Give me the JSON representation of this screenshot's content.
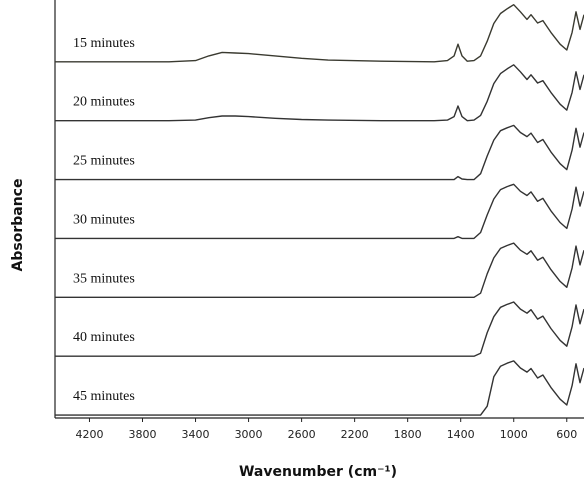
{
  "chart_data": {
    "type": "line",
    "x_label": "Wavenumber (cm⁻¹)",
    "y_label": "Absorbance",
    "x": [
      4460,
      4000,
      3600,
      3400,
      3300,
      3200,
      3100,
      3000,
      2800,
      2600,
      2400,
      2000,
      1600,
      1500,
      1450,
      1420,
      1390,
      1350,
      1300,
      1250,
      1200,
      1150,
      1100,
      1050,
      1000,
      950,
      900,
      870,
      820,
      780,
      720,
      650,
      600,
      560,
      530,
      500,
      470
    ],
    "xlim": [
      4460,
      470
    ],
    "xticks": [
      4200,
      3800,
      3400,
      3000,
      2600,
      2200,
      1800,
      1400,
      1000,
      600
    ],
    "ylim": [
      0,
      7.1
    ],
    "series": [
      {
        "name": "15 minutes",
        "color": "#3a3a30",
        "values": [
          6.05,
          6.05,
          6.05,
          6.07,
          6.15,
          6.21,
          6.2,
          6.19,
          6.15,
          6.11,
          6.08,
          6.06,
          6.05,
          6.07,
          6.15,
          6.35,
          6.15,
          6.06,
          6.07,
          6.15,
          6.4,
          6.7,
          6.87,
          6.95,
          7.02,
          6.9,
          6.77,
          6.85,
          6.71,
          6.75,
          6.55,
          6.35,
          6.25,
          6.55,
          6.9,
          6.6,
          6.85
        ]
      },
      {
        "name": "20 minutes",
        "color": "#333333",
        "values": [
          5.05,
          5.05,
          5.05,
          5.06,
          5.1,
          5.13,
          5.13,
          5.12,
          5.09,
          5.07,
          5.06,
          5.05,
          5.05,
          5.06,
          5.12,
          5.3,
          5.12,
          5.05,
          5.06,
          5.14,
          5.38,
          5.68,
          5.85,
          5.93,
          6.0,
          5.88,
          5.75,
          5.83,
          5.69,
          5.73,
          5.53,
          5.33,
          5.23,
          5.53,
          5.88,
          5.58,
          5.83
        ]
      },
      {
        "name": "25 minutes",
        "color": "#333333",
        "values": [
          4.05,
          4.05,
          4.05,
          4.05,
          4.05,
          4.05,
          4.05,
          4.05,
          4.05,
          4.05,
          4.05,
          4.05,
          4.05,
          4.05,
          4.05,
          4.1,
          4.06,
          4.05,
          4.05,
          4.15,
          4.45,
          4.72,
          4.88,
          4.93,
          4.97,
          4.85,
          4.78,
          4.84,
          4.68,
          4.73,
          4.52,
          4.32,
          4.22,
          4.55,
          4.92,
          4.6,
          4.85
        ]
      },
      {
        "name": "30 minutes",
        "color": "#333333",
        "values": [
          3.05,
          3.05,
          3.05,
          3.05,
          3.05,
          3.05,
          3.05,
          3.05,
          3.05,
          3.05,
          3.05,
          3.05,
          3.05,
          3.05,
          3.05,
          3.08,
          3.05,
          3.05,
          3.05,
          3.15,
          3.45,
          3.72,
          3.88,
          3.93,
          3.97,
          3.85,
          3.78,
          3.84,
          3.68,
          3.73,
          3.52,
          3.32,
          3.22,
          3.55,
          3.92,
          3.6,
          3.85
        ]
      },
      {
        "name": "35 minutes",
        "color": "#333333",
        "values": [
          2.05,
          2.05,
          2.05,
          2.05,
          2.05,
          2.05,
          2.05,
          2.05,
          2.05,
          2.05,
          2.05,
          2.05,
          2.05,
          2.05,
          2.05,
          2.05,
          2.05,
          2.05,
          2.05,
          2.12,
          2.45,
          2.72,
          2.88,
          2.93,
          2.97,
          2.85,
          2.78,
          2.84,
          2.68,
          2.73,
          2.52,
          2.32,
          2.22,
          2.55,
          2.92,
          2.6,
          2.85
        ]
      },
      {
        "name": "40 minutes",
        "color": "#333333",
        "values": [
          1.05,
          1.05,
          1.05,
          1.05,
          1.05,
          1.05,
          1.05,
          1.05,
          1.05,
          1.05,
          1.05,
          1.05,
          1.05,
          1.05,
          1.05,
          1.05,
          1.05,
          1.05,
          1.05,
          1.1,
          1.45,
          1.72,
          1.88,
          1.93,
          1.97,
          1.85,
          1.78,
          1.84,
          1.68,
          1.73,
          1.52,
          1.32,
          1.22,
          1.55,
          1.92,
          1.6,
          1.85
        ]
      },
      {
        "name": "45 minutes",
        "color": "#333333",
        "values": [
          0.05,
          0.05,
          0.05,
          0.05,
          0.05,
          0.05,
          0.05,
          0.05,
          0.05,
          0.05,
          0.05,
          0.05,
          0.05,
          0.05,
          0.05,
          0.05,
          0.05,
          0.05,
          0.05,
          0.05,
          0.2,
          0.7,
          0.88,
          0.93,
          0.97,
          0.85,
          0.78,
          0.84,
          0.68,
          0.73,
          0.52,
          0.32,
          0.22,
          0.55,
          0.92,
          0.6,
          0.85
        ]
      }
    ]
  }
}
